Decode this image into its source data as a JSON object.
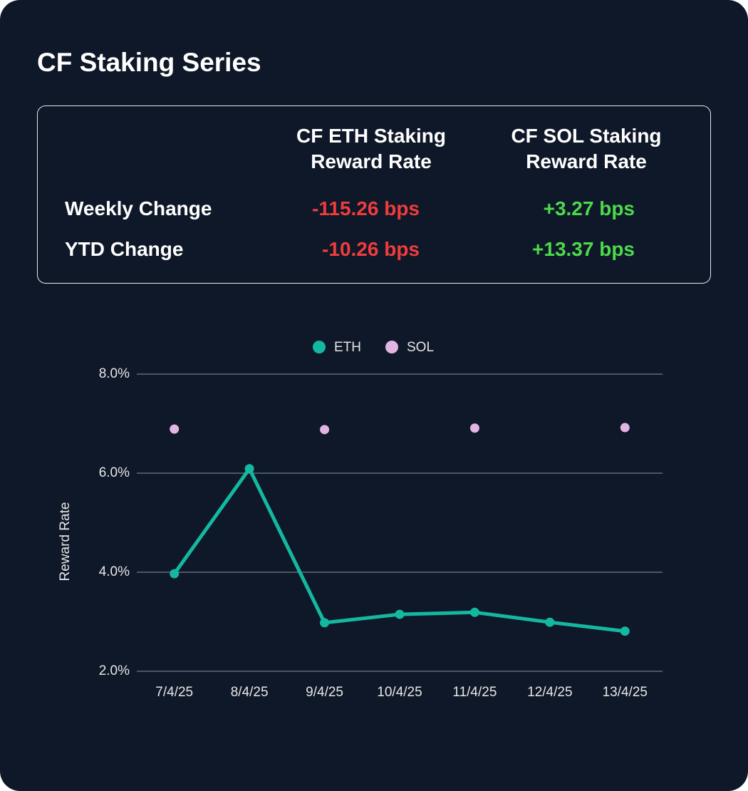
{
  "title": "CF Staking Series",
  "table": {
    "headers": [
      "CF ETH Staking Reward Rate",
      "CF SOL Staking Reward Rate"
    ],
    "rows": [
      [
        "Weekly Change",
        "-115.26 bps",
        "+3.27 bps"
      ],
      [
        "YTD Change",
        "-10.26 bps",
        "+13.37 bps"
      ]
    ]
  },
  "chart_data": {
    "type": "line",
    "y_label": "Reward Rate",
    "categories": [
      "7/4/25",
      "8/4/25",
      "9/4/25",
      "10/4/25",
      "11/4/25",
      "12/4/25",
      "13/4/25"
    ],
    "series": [
      {
        "name": "ETH",
        "color": "#14b8a0",
        "style": "line",
        "values": [
          3.97,
          6.09,
          2.98,
          3.15,
          3.19,
          2.99,
          2.81
        ]
      },
      {
        "name": "SOL",
        "color": "#e2b4e4",
        "style": "markers",
        "values": [
          6.89,
          null,
          6.88,
          null,
          6.91,
          null,
          6.92
        ]
      }
    ],
    "ylim": [
      2,
      8
    ],
    "yticks": [
      {
        "value": 2,
        "label": "2.0%"
      },
      {
        "value": 4,
        "label": "4.0%"
      },
      {
        "value": 6,
        "label": "6.0%"
      },
      {
        "value": 8,
        "label": "8.0%"
      }
    ],
    "grid": true,
    "legend": "top"
  }
}
